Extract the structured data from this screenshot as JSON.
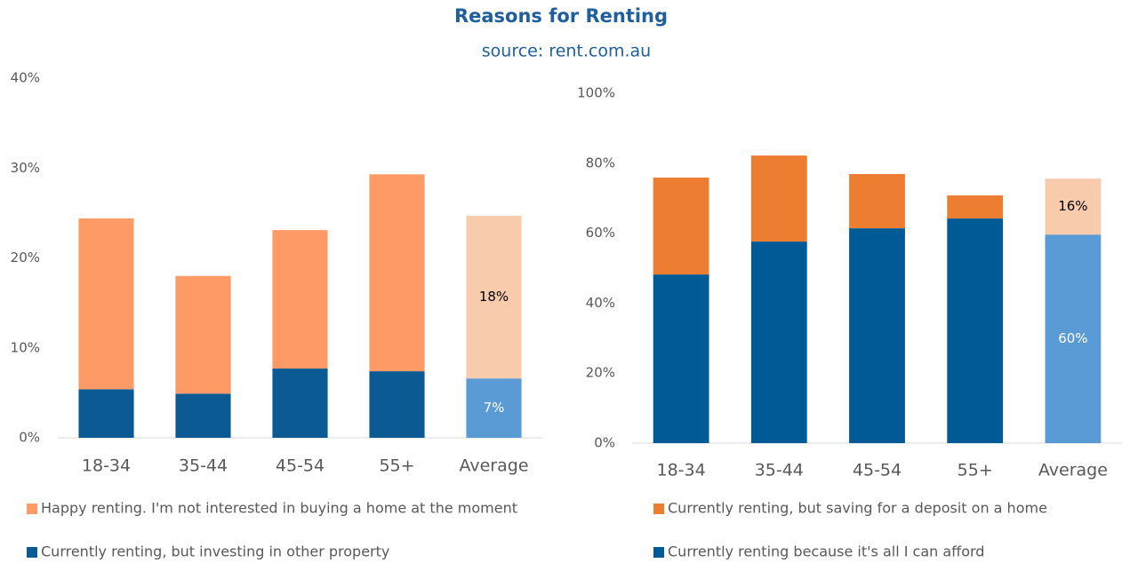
{
  "title": "Reasons for Renting",
  "subtitle": "source: rent.com.au",
  "chart_data": [
    {
      "type": "stacked_bar",
      "categories": [
        "18-34",
        "35-44",
        "45-54",
        "55+",
        "Average"
      ],
      "ylim": [
        0,
        40
      ],
      "yticks": [
        {
          "value": 0,
          "label": "0%"
        },
        {
          "value": 10,
          "label": "10%"
        },
        {
          "value": 20,
          "label": "20%"
        },
        {
          "value": 30,
          "label": "30%"
        },
        {
          "value": 40,
          "label": "40%"
        }
      ],
      "grid": false,
      "series": [
        {
          "name": "Currently renting, but investing in other property",
          "color": "#0b5a94",
          "colors": [
            "#0b5a94",
            "#0b5a94",
            "#0b5a94",
            "#0b5a94",
            "#5b9bd5"
          ],
          "values": [
            5.4,
            4.9,
            7.7,
            7.4,
            6.6
          ],
          "value_labels": [
            null,
            null,
            null,
            null,
            "7%"
          ]
        },
        {
          "name": "Happy renting. I'm not interested in buying a home at the moment",
          "color": "#fd9a66",
          "colors": [
            "#fd9a66",
            "#fd9a66",
            "#fd9a66",
            "#fd9a66",
            "#f8cbad"
          ],
          "values": [
            19.0,
            13.1,
            15.4,
            21.9,
            18.1
          ],
          "value_labels": [
            null,
            null,
            null,
            null,
            "18%"
          ]
        }
      ]
    },
    {
      "type": "stacked_bar",
      "categories": [
        "18-34",
        "35-44",
        "45-54",
        "55+",
        "Average"
      ],
      "ylim": [
        0,
        100
      ],
      "yticks": [
        {
          "value": 0,
          "label": "0%"
        },
        {
          "value": 20,
          "label": "20%"
        },
        {
          "value": 40,
          "label": "40%"
        },
        {
          "value": 60,
          "label": "60%"
        },
        {
          "value": 80,
          "label": "80%"
        },
        {
          "value": 100,
          "label": "100%"
        }
      ],
      "grid": false,
      "series": [
        {
          "name": "Currently renting because it's all I can afford",
          "color": "#005a96",
          "colors": [
            "#005a96",
            "#005a96",
            "#005a96",
            "#005a96",
            "#5b9bd5"
          ],
          "values": [
            48.2,
            57.6,
            61.4,
            64.2,
            59.6
          ],
          "value_labels": [
            null,
            null,
            null,
            null,
            "60%"
          ]
        },
        {
          "name": "Currently renting, but saving for a deposit on a home",
          "color": "#ed7d31",
          "colors": [
            "#ed7d31",
            "#ed7d31",
            "#ed7d31",
            "#ed7d31",
            "#f8cbad"
          ],
          "values": [
            27.7,
            24.6,
            15.5,
            6.6,
            16.0
          ],
          "value_labels": [
            null,
            null,
            null,
            null,
            "16%"
          ]
        }
      ]
    }
  ]
}
